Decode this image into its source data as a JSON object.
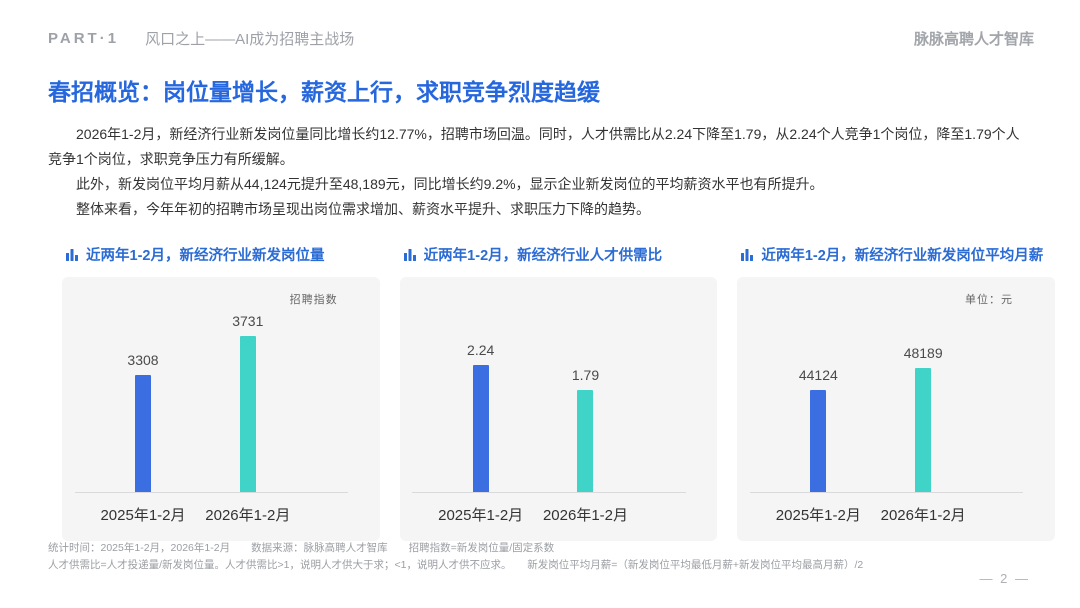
{
  "header": {
    "part_label": "PART·1",
    "section_title": "风口之上——AI成为招聘主战场",
    "brand": "脉脉高聘人才智库"
  },
  "title": "春招概览：岗位量增长，薪资上行，求职竞争烈度趋缓",
  "paragraphs": [
    "2026年1-2月，新经济行业新发岗位量同比增长约12.77%，招聘市场回温。同时，人才供需比从2.24下降至1.79，从2.24个人竞争1个岗位，降至1.79个人竞争1个岗位，求职竞争压力有所缓解。",
    "此外，新发岗位平均月薪从44,124元提升至48,189元，同比增长约9.2%，显示企业新发岗位的平均薪资水平也有所提升。",
    "整体来看，今年年初的招聘市场呈现出岗位需求增加、薪资水平提升、求职压力下降的趋势。"
  ],
  "footer": {
    "line1": "统计时间：2025年1-2月，2026年1-2月　　数据来源：脉脉高聘人才智库　　招聘指数=新发岗位量/固定系数",
    "line2": "人才供需比=人才投递量/新发岗位量。人才供需比>1，说明人才供大于求；<1，说明人才供不应求。　　新发岗位平均月薪=（新发岗位平均最低月薪+新发岗位平均最高月薪）/2",
    "page_number": "— 2 —"
  },
  "colors": {
    "accent_blue": "#2667DE",
    "chart_title_blue": "#2B6BD4",
    "bar_blue": "#3B6EE0",
    "bar_teal": "#3FD4C7",
    "card_bg": "#F5F5F6"
  },
  "chart_data": [
    {
      "type": "bar",
      "title": "近两年1-2月，新经济行业新发岗位量",
      "unit_label": "招聘指数",
      "categories": [
        "2025年1-2月",
        "2026年1-2月"
      ],
      "values": [
        3308,
        3731
      ],
      "bar_colors": [
        "#3B6EE0",
        "#3FD4C7"
      ],
      "ylim": [
        2000,
        3900
      ],
      "grid": false,
      "legend": "none"
    },
    {
      "type": "bar",
      "title": "近两年1-2月，新经济行业人才供需比",
      "unit_label": "",
      "categories": [
        "2025年1-2月",
        "2026年1-2月"
      ],
      "values": [
        2.24,
        1.79
      ],
      "bar_colors": [
        "#3B6EE0",
        "#3FD4C7"
      ],
      "ylim": [
        0,
        3
      ],
      "grid": false,
      "legend": "none"
    },
    {
      "type": "bar",
      "title": "近两年1-2月，新经济行业新发岗位平均月薪",
      "unit_label": "单位：元",
      "categories": [
        "2025年1-2月",
        "2026年1-2月"
      ],
      "values": [
        44124,
        48189
      ],
      "bar_colors": [
        "#3B6EE0",
        "#3FD4C7"
      ],
      "ylim": [
        25000,
        57000
      ],
      "grid": false,
      "legend": "none"
    }
  ]
}
